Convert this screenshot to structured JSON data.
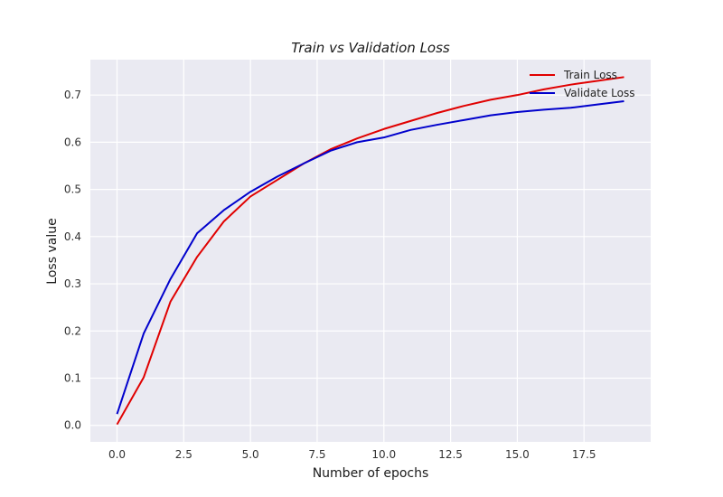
{
  "chart_data": {
    "type": "line",
    "title": "Train vs Validation Loss",
    "xlabel": "Number of epochs",
    "ylabel": "Loss value",
    "xlim": [
      -1,
      20
    ],
    "ylim": [
      -0.035,
      0.775
    ],
    "xticks": [
      0.0,
      2.5,
      5.0,
      7.5,
      10.0,
      12.5,
      15.0,
      17.5
    ],
    "xtick_labels": [
      "0.0",
      "2.5",
      "5.0",
      "7.5",
      "10.0",
      "12.5",
      "15.0",
      "17.5"
    ],
    "yticks": [
      0.0,
      0.1,
      0.2,
      0.3,
      0.4,
      0.5,
      0.6,
      0.7
    ],
    "ytick_labels": [
      "0.0",
      "0.1",
      "0.2",
      "0.3",
      "0.4",
      "0.5",
      "0.6",
      "0.7"
    ],
    "grid": true,
    "legend_position": "top-right",
    "x": [
      0,
      1,
      2,
      3,
      4,
      5,
      6,
      7,
      8,
      9,
      10,
      11,
      12,
      13,
      14,
      15,
      16,
      17,
      18,
      19
    ],
    "series": [
      {
        "name": "Train Loss",
        "color": "#e00000",
        "values": [
          0.002,
          0.102,
          0.262,
          0.357,
          0.432,
          0.485,
          0.52,
          0.555,
          0.585,
          0.608,
          0.628,
          0.645,
          0.662,
          0.677,
          0.69,
          0.7,
          0.712,
          0.722,
          0.73,
          0.738
        ]
      },
      {
        "name": "Validate Loss",
        "color": "#0000cc",
        "values": [
          0.024,
          0.195,
          0.31,
          0.407,
          0.456,
          0.495,
          0.527,
          0.555,
          0.582,
          0.6,
          0.61,
          0.626,
          0.637,
          0.647,
          0.657,
          0.664,
          0.669,
          0.673,
          0.68,
          0.687
        ]
      }
    ]
  }
}
